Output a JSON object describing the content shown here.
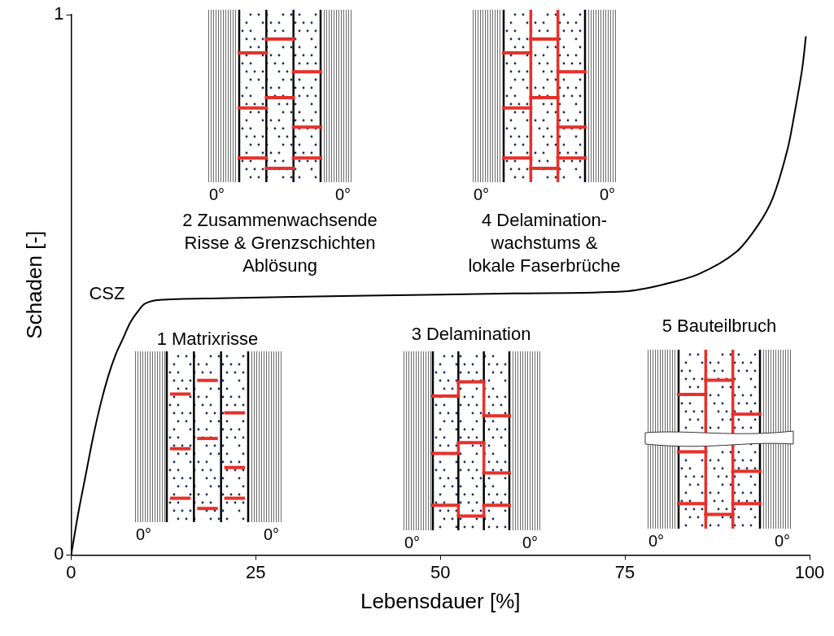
{
  "chart_data": {
    "type": "line",
    "x_label": "Lebensdauer [%]",
    "y_label": "Schaden [-]",
    "x": [
      0,
      1,
      2,
      3,
      4,
      5,
      6,
      7,
      8,
      9,
      10,
      12,
      20,
      40,
      60,
      75,
      80,
      85,
      90,
      93,
      95,
      97,
      98,
      99,
      99.5
    ],
    "values": [
      0,
      0.08,
      0.15,
      0.22,
      0.28,
      0.33,
      0.37,
      0.4,
      0.43,
      0.45,
      0.465,
      0.472,
      0.475,
      0.48,
      0.484,
      0.488,
      0.5,
      0.52,
      0.56,
      0.61,
      0.66,
      0.75,
      0.82,
      0.9,
      0.96
    ],
    "color": "#000000",
    "xlim": [
      0,
      100
    ],
    "xticks": [
      0,
      25,
      50,
      75,
      100
    ],
    "ylim": [
      0,
      1
    ],
    "yticks": [
      0,
      1
    ],
    "grid": false,
    "annotations": [
      "CSZ"
    ],
    "ply_label": "0°",
    "panels": [
      {
        "label_lines": [
          "1 Matrixrisse"
        ]
      },
      {
        "label_lines": [
          "2 Zusammenwachsende",
          "Risse & Grenzschichten",
          "Ablösung"
        ]
      },
      {
        "label_lines": [
          "3 Delamination"
        ]
      },
      {
        "label_lines": [
          "4 Delamination-",
          "wachstums &",
          "lokale Faserbrüche"
        ]
      },
      {
        "label_lines": [
          "5 Bauteilbruch"
        ]
      }
    ]
  }
}
